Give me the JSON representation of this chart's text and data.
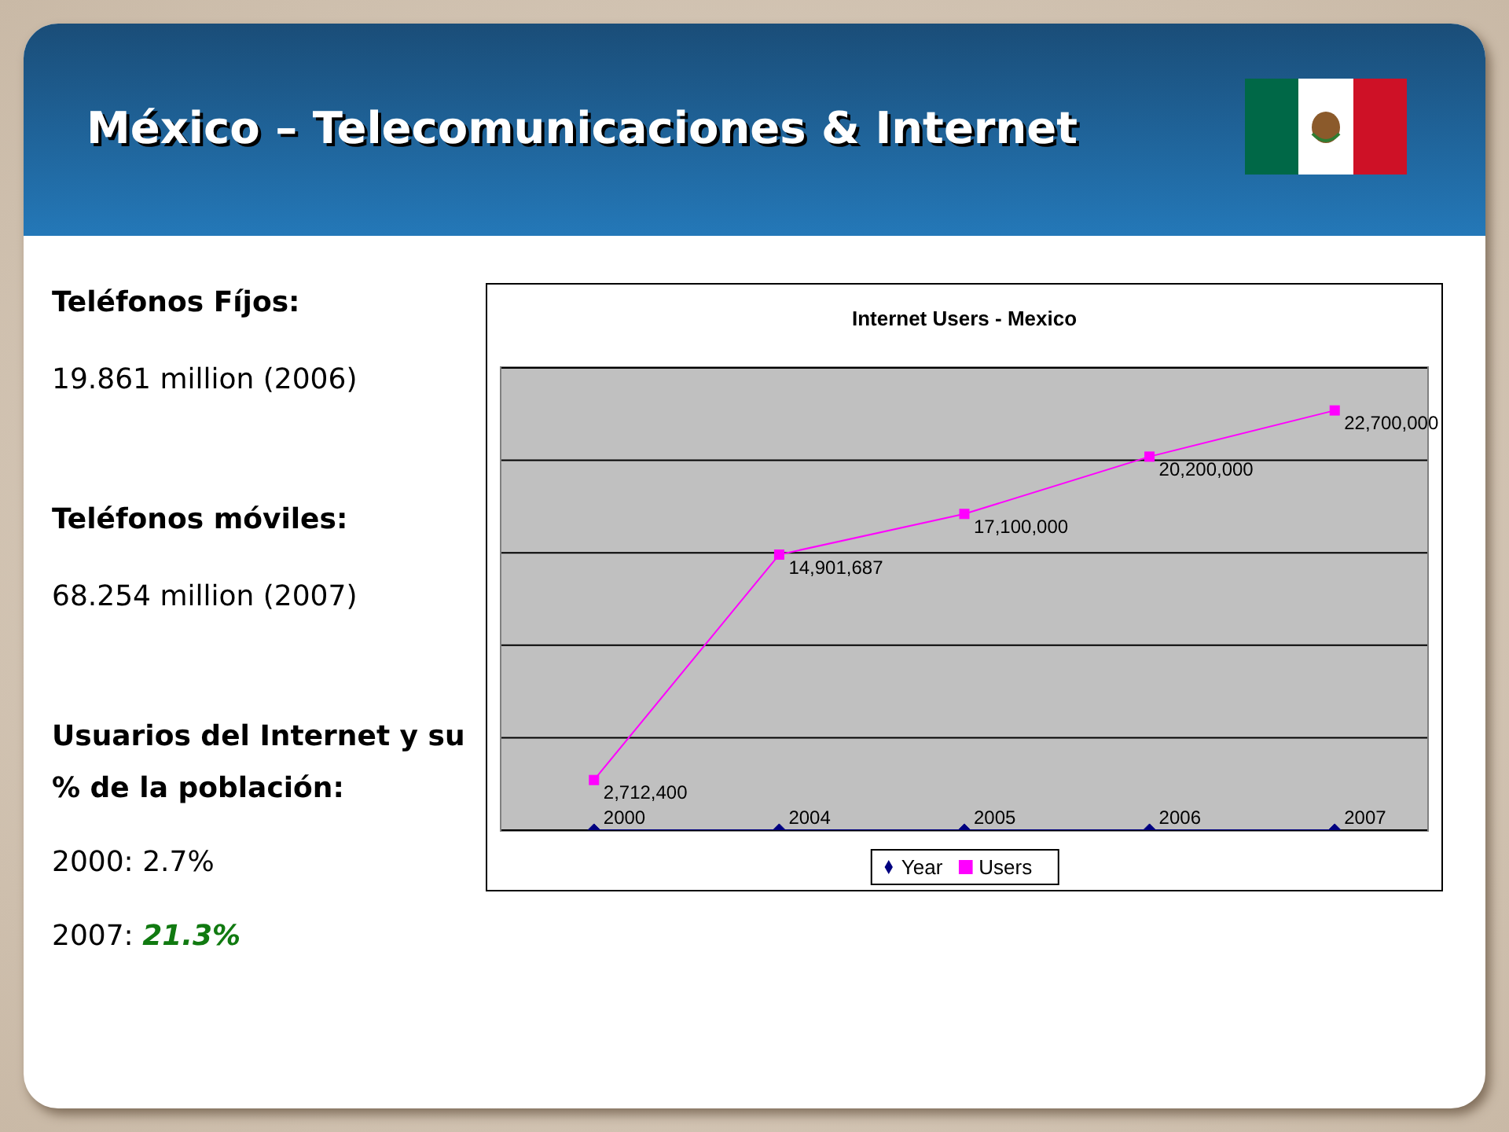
{
  "chart_data": {
    "type": "line",
    "title": "México – Telecomunicaciones & Internet",
    "subtitle": "Internet Users - Mexico",
    "categories": [
      null,
      null,
      null,
      null,
      null
    ],
    "series": [
      {
        "name": "Year",
        "color": "#000080",
        "marker": "diamond",
        "values": [
          2000,
          2004,
          2005,
          2006,
          2007
        ],
        "value_labels": [
          "2000",
          "2004",
          "2005",
          "2006",
          "2007"
        ]
      },
      {
        "name": "Users",
        "color": "#ff00ff",
        "marker": "square",
        "values": [
          2712400,
          14901687,
          17100000,
          20200000,
          22700000
        ],
        "value_labels": [
          "2,712,400",
          "14,901,687",
          "17,100,000",
          "20,200,000",
          "22,700,000"
        ]
      }
    ],
    "ylim": [
      0,
      25000000
    ],
    "yticks": [
      {
        "value": 5000000,
        "label": null
      },
      {
        "value": 10000000,
        "label": null
      },
      {
        "value": 15000000,
        "label": null
      },
      {
        "value": 20000000,
        "label": null
      }
    ],
    "grid": "y",
    "tick_labels": false,
    "legend": "bottom",
    "annotations": [
      "Teléfonos Fíjos:",
      "19.861 million (2006)",
      "Teléfonos móviles:",
      "68.254 million (2007)",
      "Usuarios del Internet y su % de la población:",
      "2000: 2.7%",
      "2007: 21.3%"
    ]
  }
}
